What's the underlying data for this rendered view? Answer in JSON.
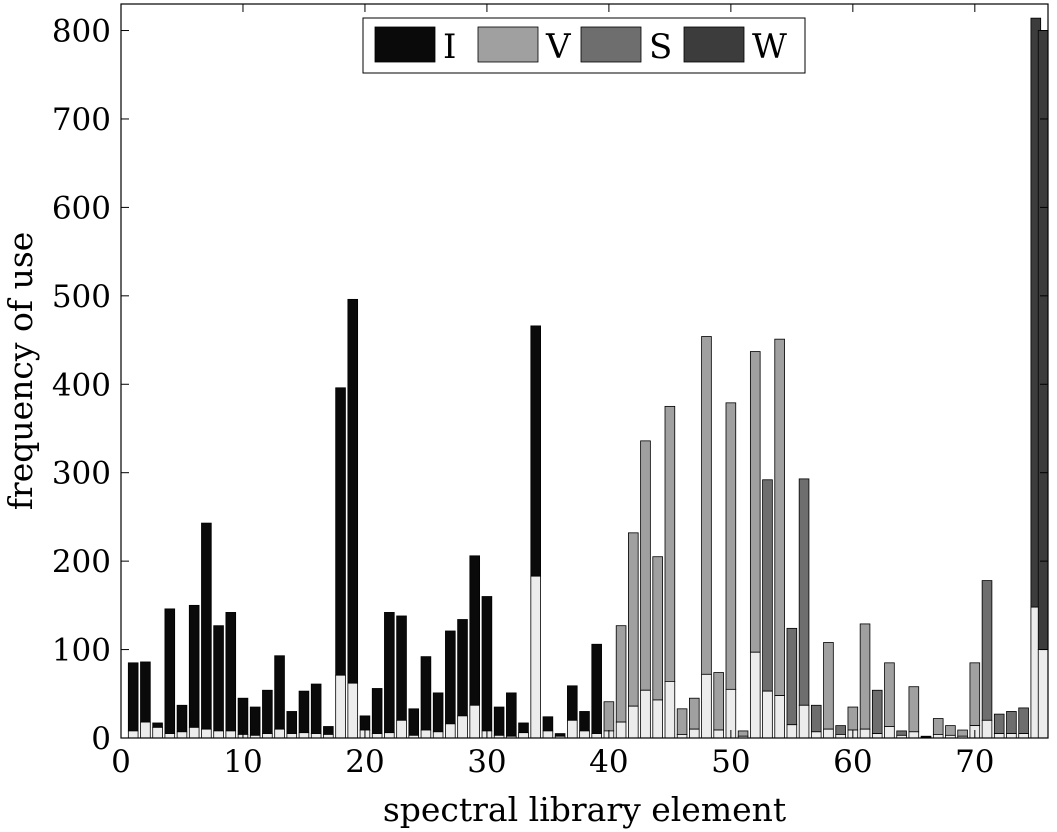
{
  "chart_data": {
    "type": "bar",
    "stacked": true,
    "xlabel": "spectral library element",
    "ylabel": "frequency of use",
    "xlim": [
      0,
      76
    ],
    "ylim": [
      0,
      830
    ],
    "xticks": [
      0,
      10,
      20,
      30,
      40,
      50,
      60,
      70
    ],
    "yticks": [
      0,
      100,
      200,
      300,
      400,
      500,
      600,
      700,
      800
    ],
    "grid": false,
    "legend": {
      "placement": "top-center",
      "entries": [
        {
          "label": "I",
          "color": "#0a0a0a"
        },
        {
          "label": "V",
          "color": "#a0a0a0"
        },
        {
          "label": "S",
          "color": "#6e6e6e"
        },
        {
          "label": "W",
          "color": "#3c3c3c"
        }
      ]
    },
    "base_color": "#ececec",
    "bars": [
      {
        "x": 1,
        "class": "I",
        "total": 85,
        "base": 8
      },
      {
        "x": 2,
        "class": "I",
        "total": 86,
        "base": 18
      },
      {
        "x": 3,
        "class": "I",
        "total": 17,
        "base": 12
      },
      {
        "x": 4,
        "class": "I",
        "total": 146,
        "base": 5
      },
      {
        "x": 5,
        "class": "I",
        "total": 37,
        "base": 7
      },
      {
        "x": 6,
        "class": "I",
        "total": 150,
        "base": 12
      },
      {
        "x": 7,
        "class": "I",
        "total": 243,
        "base": 10
      },
      {
        "x": 8,
        "class": "I",
        "total": 127,
        "base": 8
      },
      {
        "x": 9,
        "class": "I",
        "total": 142,
        "base": 8
      },
      {
        "x": 10,
        "class": "I",
        "total": 45,
        "base": 4
      },
      {
        "x": 11,
        "class": "I",
        "total": 35,
        "base": 3
      },
      {
        "x": 12,
        "class": "I",
        "total": 54,
        "base": 5
      },
      {
        "x": 13,
        "class": "I",
        "total": 93,
        "base": 10
      },
      {
        "x": 14,
        "class": "I",
        "total": 30,
        "base": 5
      },
      {
        "x": 15,
        "class": "I",
        "total": 53,
        "base": 6
      },
      {
        "x": 16,
        "class": "I",
        "total": 61,
        "base": 5
      },
      {
        "x": 17,
        "class": "I",
        "total": 13,
        "base": 4
      },
      {
        "x": 18,
        "class": "I",
        "total": 396,
        "base": 71
      },
      {
        "x": 19,
        "class": "I",
        "total": 496,
        "base": 62
      },
      {
        "x": 20,
        "class": "I",
        "total": 25,
        "base": 9
      },
      {
        "x": 21,
        "class": "I",
        "total": 56,
        "base": 5
      },
      {
        "x": 22,
        "class": "I",
        "total": 142,
        "base": 6
      },
      {
        "x": 23,
        "class": "I",
        "total": 138,
        "base": 20
      },
      {
        "x": 24,
        "class": "I",
        "total": 33,
        "base": 3
      },
      {
        "x": 25,
        "class": "I",
        "total": 92,
        "base": 9
      },
      {
        "x": 26,
        "class": "I",
        "total": 51,
        "base": 7
      },
      {
        "x": 27,
        "class": "I",
        "total": 121,
        "base": 16
      },
      {
        "x": 28,
        "class": "I",
        "total": 134,
        "base": 25
      },
      {
        "x": 29,
        "class": "I",
        "total": 206,
        "base": 37
      },
      {
        "x": 30,
        "class": "I",
        "total": 160,
        "base": 8
      },
      {
        "x": 31,
        "class": "I",
        "total": 35,
        "base": 3
      },
      {
        "x": 32,
        "class": "I",
        "total": 51,
        "base": 2
      },
      {
        "x": 33,
        "class": "I",
        "total": 17,
        "base": 6
      },
      {
        "x": 34,
        "class": "I",
        "total": 466,
        "base": 183
      },
      {
        "x": 35,
        "class": "I",
        "total": 24,
        "base": 8
      },
      {
        "x": 36,
        "class": "I",
        "total": 5,
        "base": 2
      },
      {
        "x": 37,
        "class": "I",
        "total": 59,
        "base": 20
      },
      {
        "x": 38,
        "class": "I",
        "total": 30,
        "base": 8
      },
      {
        "x": 39,
        "class": "I",
        "total": 106,
        "base": 5
      },
      {
        "x": 40,
        "class": "V",
        "total": 41,
        "base": 8
      },
      {
        "x": 41,
        "class": "V",
        "total": 127,
        "base": 18
      },
      {
        "x": 42,
        "class": "V",
        "total": 232,
        "base": 36
      },
      {
        "x": 43,
        "class": "V",
        "total": 336,
        "base": 54
      },
      {
        "x": 44,
        "class": "V",
        "total": 205,
        "base": 43
      },
      {
        "x": 45,
        "class": "V",
        "total": 375,
        "base": 64
      },
      {
        "x": 46,
        "class": "V",
        "total": 33,
        "base": 4
      },
      {
        "x": 47,
        "class": "V",
        "total": 45,
        "base": 10
      },
      {
        "x": 48,
        "class": "V",
        "total": 454,
        "base": 72
      },
      {
        "x": 49,
        "class": "V",
        "total": 74,
        "base": 9
      },
      {
        "x": 50,
        "class": "V",
        "total": 379,
        "base": 55
      },
      {
        "x": 51,
        "class": "V",
        "total": 8,
        "base": 2
      },
      {
        "x": 52,
        "class": "V",
        "total": 437,
        "base": 97
      },
      {
        "x": 53,
        "class": "S",
        "total": 292,
        "base": 53
      },
      {
        "x": 54,
        "class": "V",
        "total": 451,
        "base": 48
      },
      {
        "x": 55,
        "class": "S",
        "total": 124,
        "base": 15
      },
      {
        "x": 56,
        "class": "S",
        "total": 293,
        "base": 37
      },
      {
        "x": 57,
        "class": "S",
        "total": 37,
        "base": 7
      },
      {
        "x": 58,
        "class": "V",
        "total": 108,
        "base": 10
      },
      {
        "x": 59,
        "class": "S",
        "total": 14,
        "base": 4
      },
      {
        "x": 60,
        "class": "V",
        "total": 35,
        "base": 9
      },
      {
        "x": 61,
        "class": "V",
        "total": 129,
        "base": 10
      },
      {
        "x": 62,
        "class": "S",
        "total": 54,
        "base": 5
      },
      {
        "x": 63,
        "class": "V",
        "total": 85,
        "base": 13
      },
      {
        "x": 64,
        "class": "S",
        "total": 8,
        "base": 3
      },
      {
        "x": 65,
        "class": "V",
        "total": 58,
        "base": 7
      },
      {
        "x": 66,
        "class": "S",
        "total": 2,
        "base": 1
      },
      {
        "x": 67,
        "class": "V",
        "total": 22,
        "base": 4
      },
      {
        "x": 68,
        "class": "V",
        "total": 14,
        "base": 3
      },
      {
        "x": 69,
        "class": "V",
        "total": 9,
        "base": 2
      },
      {
        "x": 70,
        "class": "V",
        "total": 85,
        "base": 14
      },
      {
        "x": 71,
        "class": "S",
        "total": 178,
        "base": 20
      },
      {
        "x": 72,
        "class": "S",
        "total": 27,
        "base": 5
      },
      {
        "x": 73,
        "class": "S",
        "total": 30,
        "base": 5
      },
      {
        "x": 74,
        "class": "S",
        "total": 34,
        "base": 5
      },
      {
        "x": 75,
        "class": "W",
        "total": 814,
        "base": 148
      },
      {
        "x": 76,
        "class": "W",
        "total": 800,
        "base": 100
      }
    ]
  }
}
